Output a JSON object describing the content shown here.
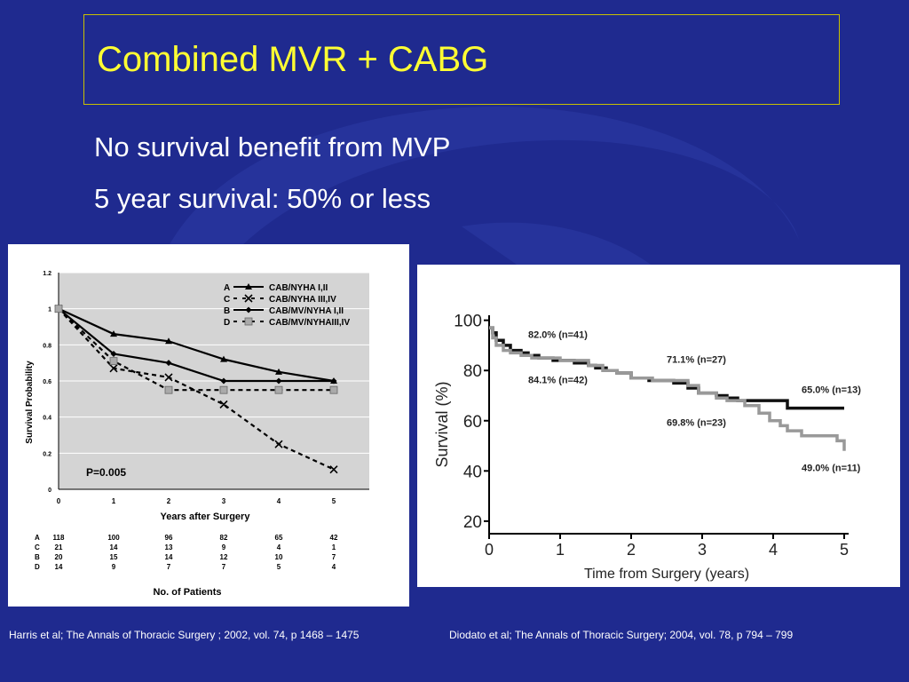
{
  "slide": {
    "title": "Combined MVR + CABG",
    "bullets": [
      "No survival benefit from MVP",
      "5 year survival: 50% or less"
    ],
    "citations": [
      "Harris et al; The Annals of Thoracic Surgery ; 2002, vol. 74, p 1468 – 1475",
      "Diodato et al; The Annals of Thoracic Surgery; 2004, vol. 78, p 794 – 799"
    ],
    "colors": {
      "background": "#1f2a8f",
      "title": "#ffff33",
      "text": "#ffffff",
      "title_border": "#c9c000"
    }
  },
  "chart_data": [
    {
      "type": "line",
      "xlabel": "Years after Surgery",
      "ylabel": "Survival Probability",
      "x": [
        0,
        1,
        2,
        3,
        4,
        5
      ],
      "xticks": [
        "0",
        "1",
        "2",
        "3",
        "4",
        "5"
      ],
      "yticks": [
        "0",
        "0.2",
        "0.4",
        "0.6",
        "0.8",
        "1",
        "1.2"
      ],
      "ylim": [
        0,
        1.2
      ],
      "grid": true,
      "series": [
        {
          "key": "A",
          "name": "CAB/NYHA I,II",
          "marker": "triangle",
          "dash": false,
          "values": [
            1.0,
            0.86,
            0.82,
            0.72,
            0.65,
            0.6
          ]
        },
        {
          "key": "C",
          "name": "CAB/NYHA III,IV",
          "marker": "x",
          "dash": true,
          "values": [
            1.0,
            0.67,
            0.62,
            0.47,
            0.25,
            0.11
          ]
        },
        {
          "key": "B",
          "name": "CAB/MV/NYHA I,II",
          "marker": "diamond",
          "dash": false,
          "values": [
            1.0,
            0.75,
            0.7,
            0.6,
            0.6,
            0.6
          ]
        },
        {
          "key": "D",
          "name": "CAB/MV/NYHAIII,IV",
          "marker": "square",
          "dash": true,
          "values": [
            1.0,
            0.71,
            0.55,
            0.55,
            0.55,
            0.55
          ]
        }
      ],
      "annotation": "P=0.005",
      "patients_title": "No. of Patients",
      "patients": [
        {
          "key": "A",
          "values": [
            "118",
            "100",
            "96",
            "82",
            "65",
            "42"
          ]
        },
        {
          "key": "C",
          "values": [
            "21",
            "14",
            "13",
            "9",
            "4",
            "1"
          ]
        },
        {
          "key": "B",
          "values": [
            "20",
            "15",
            "14",
            "12",
            "10",
            "7"
          ]
        },
        {
          "key": "D",
          "values": [
            "14",
            "9",
            "7",
            "7",
            "5",
            "4"
          ]
        }
      ]
    },
    {
      "type": "line",
      "xlabel": "Time from Surgery (years)",
      "ylabel": "Survival (%)",
      "xlim": [
        0,
        5
      ],
      "ylim": [
        15,
        102
      ],
      "xticks": [
        "0",
        "1",
        "2",
        "3",
        "4",
        "5"
      ],
      "yticks": [
        "20",
        "40",
        "60",
        "80",
        "100"
      ],
      "series": [
        {
          "color": "#111111",
          "x": [
            0,
            0.05,
            0.1,
            0.2,
            0.3,
            0.45,
            0.55,
            0.7,
            0.9,
            1.05,
            1.2,
            1.4,
            1.5,
            1.65,
            1.8,
            2.0,
            2.25,
            2.6,
            2.8,
            2.95,
            3.2,
            3.35,
            3.5,
            3.7,
            4.2,
            4.5,
            5.0
          ],
          "y": [
            97,
            95,
            92,
            90,
            88,
            87,
            86,
            85,
            84,
            84,
            83,
            82,
            81,
            80,
            79,
            77,
            76,
            75,
            73,
            71,
            70,
            69,
            68,
            68,
            65,
            65,
            65
          ]
        },
        {
          "color": "#999999",
          "x": [
            0,
            0.05,
            0.1,
            0.2,
            0.3,
            0.45,
            0.6,
            0.8,
            1.0,
            1.2,
            1.4,
            1.6,
            1.8,
            2.0,
            2.3,
            2.8,
            2.95,
            3.2,
            3.35,
            3.6,
            3.8,
            3.95,
            4.1,
            4.2,
            4.4,
            4.6,
            4.9,
            5.0
          ],
          "y": [
            97,
            93,
            90,
            88,
            87,
            86,
            85,
            85,
            84,
            84,
            82,
            80,
            79,
            77,
            76,
            74,
            71,
            69,
            68,
            66,
            63,
            60,
            58,
            56,
            54,
            54,
            52,
            48
          ]
        }
      ],
      "annotations": [
        {
          "text": "82.0% (n=41)",
          "x": 0.55,
          "y": 93
        },
        {
          "text": "84.1% (n=42)",
          "x": 0.55,
          "y": 75
        },
        {
          "text": "71.1% (n=27)",
          "x": 2.5,
          "y": 83
        },
        {
          "text": "69.8% (n=23)",
          "x": 2.5,
          "y": 58
        },
        {
          "text": "65.0% (n=13)",
          "x": 4.4,
          "y": 71
        },
        {
          "text": "49.0% (n=11)",
          "x": 4.4,
          "y": 40
        }
      ]
    }
  ]
}
